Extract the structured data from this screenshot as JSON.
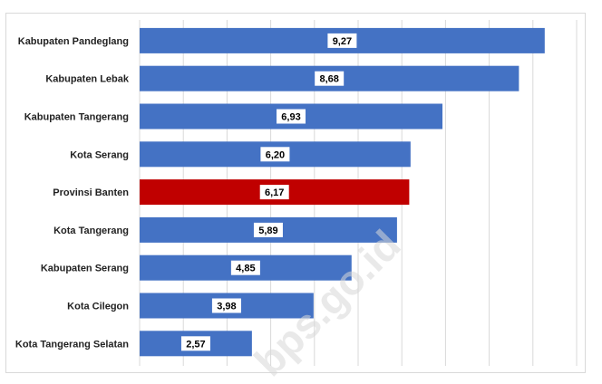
{
  "chart_data": {
    "type": "bar",
    "orientation": "horizontal",
    "categories": [
      "Kabupaten Pandeglang",
      "Kabupaten Lebak",
      "Kabupaten Tangerang",
      "Kota Serang",
      "Provinsi Banten",
      "Kota Tangerang",
      "Kabupaten Serang",
      "Kota Cilegon",
      "Kota Tangerang Selatan"
    ],
    "values": [
      9.27,
      8.68,
      6.93,
      6.2,
      6.17,
      5.89,
      4.85,
      3.98,
      2.57
    ],
    "value_labels": [
      "9,27",
      "8,68",
      "6,93",
      "6,20",
      "6,17",
      "5,89",
      "4,85",
      "3,98",
      "2,57"
    ],
    "xlim": [
      0,
      10
    ],
    "grid": true,
    "title": "",
    "xlabel": "",
    "ylabel": "",
    "colors": {
      "default_bar": "#4472c4",
      "highlight_bar": "#c00000",
      "highlight_category": "Provinsi Banten"
    },
    "watermark": "bps.go.id"
  }
}
